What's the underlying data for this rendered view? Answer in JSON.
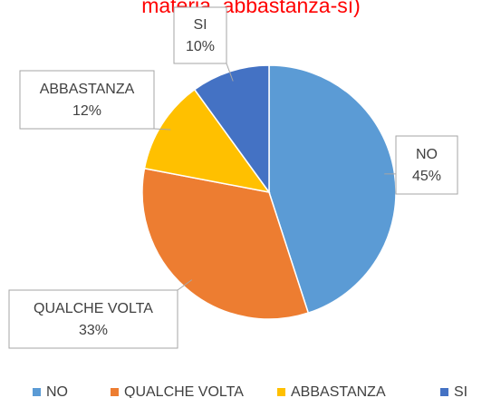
{
  "chart_data": {
    "type": "pie",
    "title": "materia, abbastanza-sì)",
    "categories": [
      "NO",
      "QUALCHE VOLTA",
      "ABBASTANZA",
      "SI"
    ],
    "values": [
      45,
      33,
      12,
      10
    ],
    "value_labels": [
      "45%",
      "33%",
      "12%",
      "10%"
    ],
    "colors": [
      "#5b9bd5",
      "#ed7d31",
      "#ffc000",
      "#4472c4"
    ],
    "legend": "bottom"
  }
}
